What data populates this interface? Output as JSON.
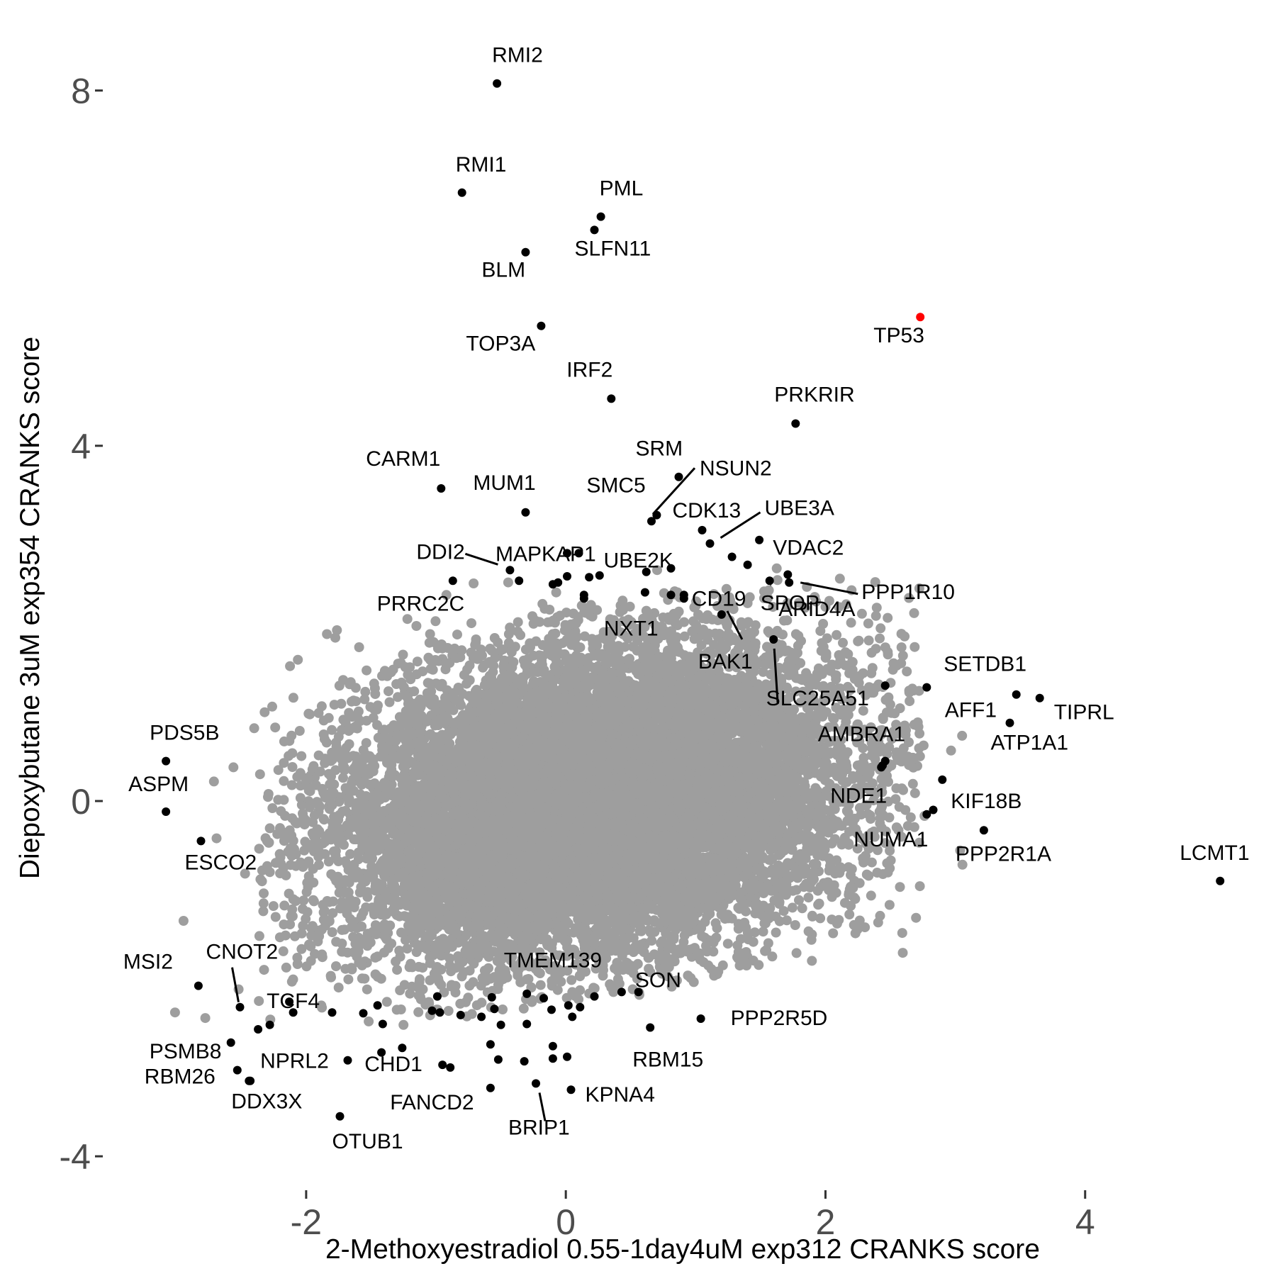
{
  "chart_data": {
    "type": "scatter",
    "xlabel": "2-Methoxyestradiol 0.55-1day4uM exp312 CRANKS score",
    "ylabel": "Diepoxybutane 3uM exp354 CRANKS score",
    "xlim": [
      -3.55,
      5.35
    ],
    "ylim": [
      -4.35,
      8.7
    ],
    "x_ticks": [
      {
        "value": -2,
        "label": "-2"
      },
      {
        "value": 0,
        "label": "0"
      },
      {
        "value": 2,
        "label": "2"
      },
      {
        "value": 4,
        "label": "4"
      }
    ],
    "y_ticks": [
      {
        "value": -4,
        "label": "-4"
      },
      {
        "value": 0,
        "label": "0"
      },
      {
        "value": 4,
        "label": "4"
      },
      {
        "value": 8,
        "label": "8"
      }
    ],
    "grid": false,
    "colors": {
      "background_points": "#9e9e9e",
      "highlight": "#000000",
      "tp53": "#ff0000"
    },
    "background": {
      "note": "dense cloud of several thousand unlabeled genes, roughly centered at (0.2, 0.0)",
      "center": [
        0.2,
        0.0
      ],
      "sd": [
        0.95,
        0.85
      ],
      "correlation": 0.22,
      "count": 14000,
      "outliers": [
        [
          -1.84,
          1.88
        ],
        [
          -1.33,
          1.48
        ],
        [
          -1.65,
          1.12
        ],
        [
          -2.32,
          1.0
        ],
        [
          -2.4,
          0.82
        ],
        [
          -2.56,
          0.38
        ],
        [
          -2.71,
          0.22
        ],
        [
          -1.98,
          0.25
        ],
        [
          -2.29,
          0.08
        ],
        [
          -2.26,
          -0.08
        ],
        [
          -2.69,
          -0.42
        ],
        [
          -2.28,
          -0.8
        ],
        [
          -2.12,
          -0.72
        ],
        [
          -2.02,
          -1.12
        ],
        [
          -2.33,
          -1.24
        ],
        [
          -2.36,
          -1.52
        ],
        [
          -1.91,
          -1.58
        ],
        [
          -1.77,
          -1.86
        ],
        [
          -2.52,
          -2.12
        ],
        [
          -3.01,
          -2.38
        ],
        [
          -1.22,
          2.05
        ],
        [
          -0.92,
          2.32
        ],
        [
          -0.71,
          2.45
        ],
        [
          -0.18,
          2.22
        ],
        [
          0.08,
          2.0
        ],
        [
          0.24,
          2.15
        ],
        [
          0.44,
          2.15
        ],
        [
          0.86,
          2.35
        ],
        [
          1.02,
          2.1
        ],
        [
          1.17,
          1.85
        ],
        [
          1.48,
          1.55
        ],
        [
          1.57,
          1.65
        ],
        [
          1.63,
          1.5
        ],
        [
          1.84,
          1.22
        ],
        [
          2.01,
          1.2
        ],
        [
          2.19,
          1.25
        ],
        [
          2.34,
          1.28
        ],
        [
          2.43,
          0.75
        ],
        [
          2.61,
          0.85
        ],
        [
          2.12,
          0.6
        ],
        [
          2.17,
          0.55
        ],
        [
          2.32,
          0.3
        ],
        [
          2.09,
          0.28
        ],
        [
          1.94,
          0.05
        ],
        [
          2.31,
          -0.05
        ],
        [
          2.21,
          -0.25
        ],
        [
          1.95,
          -0.3
        ],
        [
          1.98,
          -0.62
        ],
        [
          1.91,
          -0.88
        ],
        [
          1.9,
          -1.3
        ],
        [
          1.96,
          -1.32
        ],
        [
          2.09,
          -1.38
        ],
        [
          1.56,
          -1.6
        ],
        [
          1.59,
          -1.75
        ],
        [
          1.21,
          -1.85
        ],
        [
          0.44,
          -1.9
        ],
        [
          0.55,
          -2.0
        ],
        [
          0.35,
          -2.1
        ],
        [
          0.05,
          -2.15
        ],
        [
          -0.55,
          -1.98
        ],
        [
          -0.82,
          -1.8
        ],
        [
          -1.15,
          -1.7
        ],
        [
          -1.45,
          -1.75
        ],
        [
          -1.55,
          -2.0
        ],
        [
          -1.75,
          -2.1
        ],
        [
          1.33,
          -1.7
        ]
      ]
    },
    "points": [
      {
        "label": "RMI2",
        "x": -0.53,
        "y": 8.08,
        "color": "black"
      },
      {
        "label": "RMI1",
        "x": -0.8,
        "y": 6.85,
        "color": "black"
      },
      {
        "label": "PML",
        "x": 0.27,
        "y": 6.58,
        "color": "black"
      },
      {
        "label": "SLFN11",
        "x": 0.22,
        "y": 6.43,
        "color": "black"
      },
      {
        "label": "BLM",
        "x": -0.31,
        "y": 6.18,
        "color": "black"
      },
      {
        "label": "TP53",
        "x": 2.73,
        "y": 5.45,
        "color": "red"
      },
      {
        "label": "TOP3A",
        "x": -0.19,
        "y": 5.35,
        "color": "black"
      },
      {
        "label": "IRF2",
        "x": 0.35,
        "y": 4.53,
        "color": "black"
      },
      {
        "label": "PRKRIR",
        "x": 1.77,
        "y": 4.25,
        "color": "black"
      },
      {
        "label": "CARM1",
        "x": -0.96,
        "y": 3.52,
        "color": "black"
      },
      {
        "label": "SRM",
        "x": 0.87,
        "y": 3.65,
        "color": "black"
      },
      {
        "label": "NSUN2",
        "x": 0.66,
        "y": 3.15,
        "color": "black"
      },
      {
        "label": "MUM1",
        "x": -0.31,
        "y": 3.25,
        "color": "black"
      },
      {
        "label": "SMC5",
        "x": 0.7,
        "y": 3.22,
        "color": "black"
      },
      {
        "label": "CDK13",
        "x": 1.05,
        "y": 3.05,
        "color": "black"
      },
      {
        "label": "UBE3A",
        "x": 1.11,
        "y": 2.9,
        "color": "black"
      },
      {
        "label": "MAPKAP1",
        "x": 0.01,
        "y": 2.79,
        "color": "black"
      },
      {
        "label": "UBE2K",
        "x": 0.1,
        "y": 2.79,
        "color": "black"
      },
      {
        "label": "DDI2",
        "x": -0.43,
        "y": 2.6,
        "color": "black"
      },
      {
        "label": "VDAC2",
        "x": 1.71,
        "y": 2.55,
        "color": "black"
      },
      {
        "label": "PRRC2C",
        "x": -0.87,
        "y": 2.48,
        "color": "black"
      },
      {
        "label": "PPP1R10",
        "x": 1.72,
        "y": 2.46,
        "color": "black"
      },
      {
        "label": "SPOP",
        "x": 1.57,
        "y": 2.48,
        "color": "black"
      },
      {
        "label": "CD19",
        "x": 0.91,
        "y": 2.28,
        "color": "black"
      },
      {
        "label": "BAK1",
        "x": 1.2,
        "y": 2.1,
        "color": "black"
      },
      {
        "label": "ARID4A",
        "x": 1.6,
        "y": 1.82,
        "color": "black"
      },
      {
        "label": "NXT1",
        "x": 0.61,
        "y": 2.35,
        "color": "black"
      },
      {
        "label": "SETDB1",
        "x": 2.78,
        "y": 1.28,
        "color": "black"
      },
      {
        "label": "SLC25A51",
        "x": 2.46,
        "y": 1.3,
        "color": "black"
      },
      {
        "label": "AFF1",
        "x": 3.47,
        "y": 1.2,
        "color": "black"
      },
      {
        "label": "TIPRL",
        "x": 3.65,
        "y": 1.16,
        "color": "black"
      },
      {
        "label": "ATP1A1",
        "x": 3.42,
        "y": 0.88,
        "color": "black"
      },
      {
        "label": "AMBRA1",
        "x": 2.46,
        "y": 0.45,
        "color": "black"
      },
      {
        "label": "NDE1",
        "x": 2.43,
        "y": 0.38,
        "color": "black"
      },
      {
        "label": "KIF18B",
        "x": 2.9,
        "y": 0.24,
        "color": "black"
      },
      {
        "label": "NUMA1",
        "x": 2.78,
        "y": -0.15,
        "color": "black"
      },
      {
        "label": "PPP2R1A",
        "x": 3.22,
        "y": -0.33,
        "color": "black"
      },
      {
        "label": "LCMT1",
        "x": 5.04,
        "y": -0.9,
        "color": "black"
      },
      {
        "label": "PDS5B",
        "x": -3.08,
        "y": 0.45,
        "color": "black"
      },
      {
        "label": "ASPM",
        "x": -3.08,
        "y": -0.12,
        "color": "black"
      },
      {
        "label": "ESCO2",
        "x": -2.81,
        "y": -0.45,
        "color": "black"
      },
      {
        "label": "CNOT2",
        "x": -2.51,
        "y": -2.32,
        "color": "black"
      },
      {
        "label": "MSI2",
        "x": -2.83,
        "y": -2.08,
        "color": "black"
      },
      {
        "label": "TCF4",
        "x": -2.37,
        "y": -2.57,
        "color": "black"
      },
      {
        "label": "PSMB8",
        "x": -2.58,
        "y": -2.72,
        "color": "black"
      },
      {
        "label": "RBM26",
        "x": -2.53,
        "y": -3.03,
        "color": "black"
      },
      {
        "label": "NPRL2",
        "x": -2.43,
        "y": -3.15,
        "color": "black"
      },
      {
        "label": "DDX3X",
        "x": -2.44,
        "y": -3.15,
        "color": "black"
      },
      {
        "label": "CHD1",
        "x": -0.95,
        "y": -2.97,
        "color": "black"
      },
      {
        "label": "FANCD2",
        "x": -0.89,
        "y": -3.0,
        "color": "black"
      },
      {
        "label": "OTUB1",
        "x": -1.74,
        "y": -3.55,
        "color": "black"
      },
      {
        "label": "BRIP1",
        "x": -0.23,
        "y": -3.18,
        "color": "black"
      },
      {
        "label": "KPNA4",
        "x": 0.04,
        "y": -3.25,
        "color": "black"
      },
      {
        "label": "TMEM139",
        "x": 0.56,
        "y": -2.15,
        "color": "black"
      },
      {
        "label": "SON",
        "x": 0.43,
        "y": -2.15,
        "color": "black"
      },
      {
        "label": "PPP2R5D",
        "x": 1.04,
        "y": -2.45,
        "color": "black"
      },
      {
        "label": "RBM15",
        "x": 0.65,
        "y": -2.55,
        "color": "black"
      }
    ],
    "unlabeled_highlight": [
      [
        -0.36,
        2.48
      ],
      [
        -0.1,
        2.44
      ],
      [
        -0.06,
        2.46
      ],
      [
        0.01,
        2.53
      ],
      [
        0.18,
        2.52
      ],
      [
        0.26,
        2.54
      ],
      [
        0.14,
        2.32
      ],
      [
        0.14,
        2.28
      ],
      [
        0.62,
        2.58
      ],
      [
        0.81,
        2.62
      ],
      [
        0.81,
        2.32
      ],
      [
        1.28,
        2.75
      ],
      [
        1.4,
        2.66
      ],
      [
        1.49,
        2.94
      ],
      [
        0.91,
        2.32
      ],
      [
        2.83,
        -0.1
      ],
      [
        2.44,
        0.4
      ],
      [
        -2.13,
        -2.26
      ],
      [
        -1.8,
        -2.38
      ],
      [
        -1.56,
        -2.39
      ],
      [
        -1.45,
        -2.3
      ],
      [
        -1.41,
        -2.51
      ],
      [
        -1.42,
        -2.83
      ],
      [
        -1.26,
        -2.78
      ],
      [
        -1.03,
        -2.36
      ],
      [
        -0.97,
        -2.38
      ],
      [
        -0.99,
        -2.2
      ],
      [
        -0.81,
        -2.41
      ],
      [
        -0.65,
        -2.43
      ],
      [
        -0.57,
        -2.21
      ],
      [
        -0.55,
        -2.34
      ],
      [
        -0.5,
        -2.52
      ],
      [
        -0.3,
        -2.17
      ],
      [
        -0.17,
        -2.22
      ],
      [
        -0.11,
        -2.35
      ],
      [
        0.02,
        -2.3
      ],
      [
        0.05,
        -2.43
      ],
      [
        0.11,
        -2.32
      ],
      [
        0.22,
        -2.2
      ],
      [
        -0.3,
        -2.51
      ],
      [
        -0.58,
        -2.74
      ],
      [
        -0.52,
        -2.91
      ],
      [
        -0.1,
        -2.76
      ],
      [
        -0.1,
        -2.9
      ],
      [
        -0.32,
        -2.93
      ],
      [
        -0.58,
        -3.23
      ],
      [
        -1.68,
        -2.92
      ],
      [
        -2.28,
        -2.52
      ],
      [
        0.01,
        -2.88
      ],
      [
        -2.1,
        -2.38
      ]
    ]
  }
}
